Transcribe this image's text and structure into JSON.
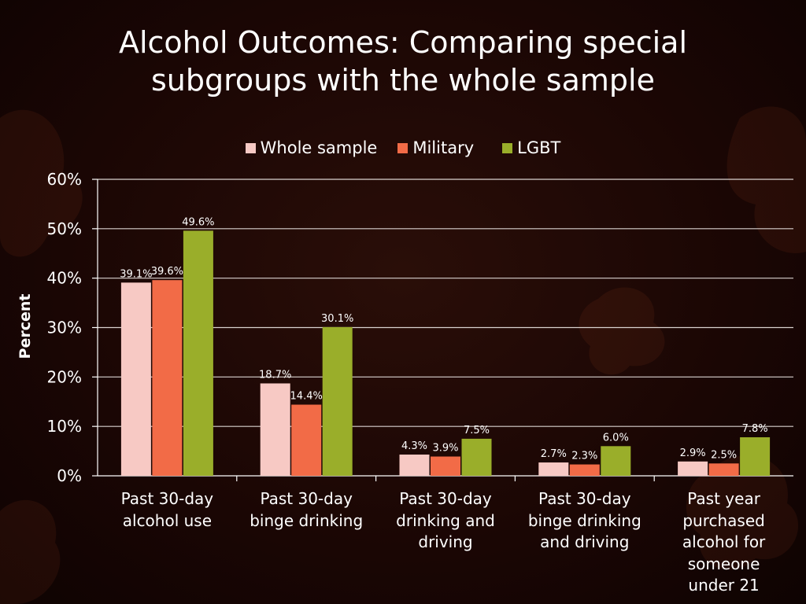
{
  "title_lines": [
    "Alcohol Outcomes: Comparing special",
    "subgroups with the whole sample"
  ],
  "colors": {
    "whole": "#f7c9c4",
    "military": "#f26b47",
    "lgbt": "#9aae2a"
  },
  "chart_data": {
    "type": "bar",
    "title": "Alcohol Outcomes: Comparing special subgroups with the whole sample",
    "xlabel": "",
    "ylabel": "Percent",
    "ylim": [
      0,
      60
    ],
    "yticks": [
      "0%",
      "10%",
      "20%",
      "30%",
      "40%",
      "50%",
      "60%"
    ],
    "grid": true,
    "legend_position": "top",
    "categories": [
      [
        "Past 30-day",
        "alcohol use"
      ],
      [
        "Past 30-day",
        "binge drinking"
      ],
      [
        "Past 30-day",
        "drinking and",
        "driving"
      ],
      [
        "Past 30-day",
        "binge drinking",
        "and driving"
      ],
      [
        "Past year",
        "purchased",
        "alcohol for",
        "someone",
        "under 21"
      ]
    ],
    "series": [
      {
        "name": "Whole sample",
        "values": [
          39.1,
          18.7,
          4.3,
          2.7,
          2.9
        ],
        "labels": [
          "39.1%",
          "18.7%",
          "4.3%",
          "2.7%",
          "2.9%"
        ]
      },
      {
        "name": "Military",
        "values": [
          39.6,
          14.4,
          3.9,
          2.3,
          2.5
        ],
        "labels": [
          "39.6%",
          "14.4%",
          "3.9%",
          "2.3%",
          "2.5%"
        ]
      },
      {
        "name": "LGBT",
        "values": [
          49.6,
          30.1,
          7.5,
          6.0,
          7.8
        ],
        "labels": [
          "49.6%",
          "30.1%",
          "7.5%",
          "6.0%",
          "7.8%"
        ]
      }
    ]
  }
}
